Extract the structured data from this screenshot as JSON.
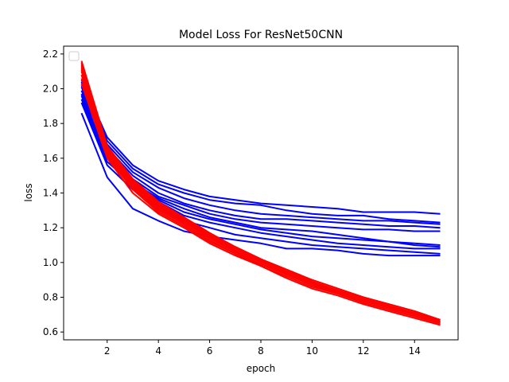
{
  "chart_data": {
    "type": "line",
    "title": "Model Loss For ResNet50CNN",
    "xlabel": "epoch",
    "ylabel": "loss",
    "xlim": [
      0.3,
      15.7
    ],
    "ylim": [
      0.555,
      2.245
    ],
    "xticks": [
      2,
      4,
      6,
      8,
      10,
      12,
      14
    ],
    "yticks": [
      0.6,
      0.8,
      1.0,
      1.2,
      1.4,
      1.6,
      1.8,
      2.0,
      2.2
    ],
    "xtick_labels": [
      "2",
      "4",
      "6",
      "8",
      "10",
      "12",
      "14"
    ],
    "ytick_labels": [
      "0.6",
      "0.8",
      "1.0",
      "1.2",
      "1.4",
      "1.6",
      "1.8",
      "2.0",
      "2.2"
    ],
    "grid": false,
    "legend": {
      "placement": "top-left",
      "entries": []
    },
    "colors": {
      "validation": "#0000ff",
      "training": "#ff0000"
    },
    "x": [
      1,
      2,
      3,
      4,
      5,
      6,
      7,
      8,
      9,
      10,
      11,
      12,
      13,
      14,
      15
    ],
    "series": [
      {
        "color": "#0000ff",
        "values": [
          1.86,
          1.49,
          1.31,
          1.24,
          1.18,
          1.15,
          1.13,
          1.11,
          1.08,
          1.08,
          1.07,
          1.05,
          1.04,
          1.04,
          1.04
        ]
      },
      {
        "color": "#0000ff",
        "values": [
          1.92,
          1.56,
          1.42,
          1.32,
          1.24,
          1.2,
          1.16,
          1.14,
          1.12,
          1.1,
          1.09,
          1.08,
          1.07,
          1.06,
          1.05
        ]
      },
      {
        "color": "#0000ff",
        "values": [
          1.94,
          1.58,
          1.45,
          1.35,
          1.27,
          1.23,
          1.2,
          1.17,
          1.15,
          1.13,
          1.11,
          1.1,
          1.09,
          1.08,
          1.08
        ]
      },
      {
        "color": "#0000ff",
        "values": [
          1.96,
          1.6,
          1.47,
          1.36,
          1.29,
          1.25,
          1.22,
          1.19,
          1.17,
          1.15,
          1.14,
          1.13,
          1.12,
          1.11,
          1.1
        ]
      },
      {
        "color": "#0000ff",
        "values": [
          1.97,
          1.61,
          1.46,
          1.37,
          1.31,
          1.26,
          1.23,
          1.2,
          1.19,
          1.18,
          1.16,
          1.14,
          1.12,
          1.1,
          1.09
        ]
      },
      {
        "color": "#0000ff",
        "values": [
          1.99,
          1.64,
          1.48,
          1.38,
          1.33,
          1.28,
          1.25,
          1.23,
          1.22,
          1.21,
          1.2,
          1.19,
          1.19,
          1.18,
          1.18
        ]
      },
      {
        "color": "#0000ff",
        "values": [
          2.01,
          1.66,
          1.5,
          1.4,
          1.34,
          1.3,
          1.27,
          1.25,
          1.25,
          1.24,
          1.23,
          1.22,
          1.21,
          1.21,
          1.2
        ]
      },
      {
        "color": "#0000ff",
        "values": [
          2.02,
          1.68,
          1.52,
          1.43,
          1.37,
          1.33,
          1.3,
          1.28,
          1.27,
          1.26,
          1.25,
          1.24,
          1.24,
          1.23,
          1.22
        ]
      },
      {
        "color": "#0000ff",
        "values": [
          2.04,
          1.7,
          1.54,
          1.45,
          1.4,
          1.36,
          1.34,
          1.33,
          1.3,
          1.28,
          1.27,
          1.27,
          1.25,
          1.24,
          1.23
        ]
      },
      {
        "color": "#0000ff",
        "values": [
          2.05,
          1.72,
          1.56,
          1.47,
          1.42,
          1.38,
          1.36,
          1.34,
          1.33,
          1.32,
          1.31,
          1.29,
          1.29,
          1.29,
          1.28
        ]
      },
      {
        "color": "#ff0000",
        "values": [
          2.03,
          1.6,
          1.4,
          1.28,
          1.2,
          1.11,
          1.04,
          0.98,
          0.91,
          0.85,
          0.81,
          0.76,
          0.72,
          0.68,
          0.64
        ]
      },
      {
        "color": "#ff0000",
        "values": [
          2.06,
          1.61,
          1.42,
          1.29,
          1.21,
          1.12,
          1.05,
          0.98,
          0.92,
          0.86,
          0.82,
          0.77,
          0.73,
          0.69,
          0.65
        ]
      },
      {
        "color": "#ff0000",
        "values": [
          2.08,
          1.62,
          1.43,
          1.3,
          1.22,
          1.13,
          1.05,
          0.99,
          0.93,
          0.87,
          0.82,
          0.77,
          0.73,
          0.69,
          0.65
        ]
      },
      {
        "color": "#ff0000",
        "values": [
          2.1,
          1.63,
          1.44,
          1.31,
          1.23,
          1.14,
          1.06,
          0.99,
          0.93,
          0.87,
          0.83,
          0.78,
          0.74,
          0.7,
          0.66
        ]
      },
      {
        "color": "#ff0000",
        "values": [
          2.11,
          1.64,
          1.45,
          1.32,
          1.23,
          1.15,
          1.07,
          1.0,
          0.94,
          0.88,
          0.83,
          0.78,
          0.74,
          0.7,
          0.66
        ]
      },
      {
        "color": "#ff0000",
        "values": [
          2.12,
          1.65,
          1.46,
          1.33,
          1.24,
          1.15,
          1.07,
          1.0,
          0.94,
          0.88,
          0.84,
          0.79,
          0.75,
          0.7,
          0.66
        ]
      },
      {
        "color": "#ff0000",
        "values": [
          2.13,
          1.65,
          1.46,
          1.33,
          1.25,
          1.16,
          1.08,
          1.01,
          0.95,
          0.89,
          0.84,
          0.79,
          0.75,
          0.71,
          0.66
        ]
      },
      {
        "color": "#ff0000",
        "values": [
          2.14,
          1.66,
          1.47,
          1.34,
          1.25,
          1.16,
          1.08,
          1.01,
          0.95,
          0.89,
          0.84,
          0.79,
          0.75,
          0.71,
          0.67
        ]
      },
      {
        "color": "#ff0000",
        "values": [
          2.15,
          1.66,
          1.47,
          1.34,
          1.26,
          1.17,
          1.09,
          1.02,
          0.95,
          0.9,
          0.85,
          0.8,
          0.76,
          0.72,
          0.67
        ]
      },
      {
        "color": "#ff0000",
        "values": [
          2.16,
          1.67,
          1.48,
          1.35,
          1.26,
          1.17,
          1.09,
          1.02,
          0.96,
          0.9,
          0.85,
          0.8,
          0.76,
          0.72,
          0.67
        ]
      }
    ]
  }
}
